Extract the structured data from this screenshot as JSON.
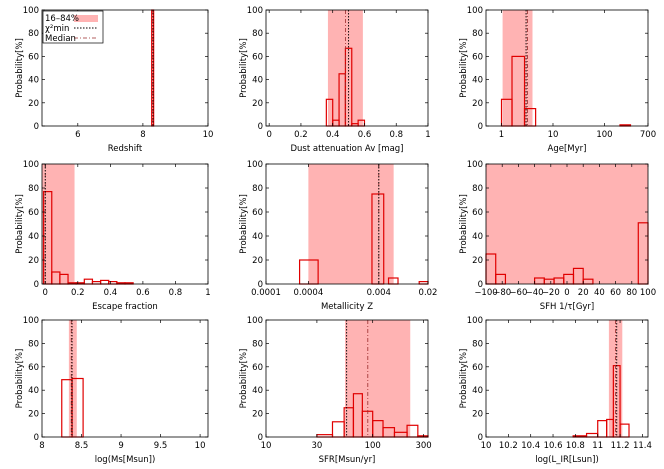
{
  "colors": {
    "band": "#ffb3b3",
    "hist": "#e00000",
    "chi2": "#000000",
    "median": "#9a2b2b",
    "frame": "#000000"
  },
  "legend": {
    "band_label": "16–84%",
    "chi2_label": "χ²min",
    "median_label": "Median"
  },
  "chart_data": [
    {
      "type": "bar",
      "xlabel": "Redshift",
      "ylabel": "Probability[%]",
      "xscale": "linear",
      "xlim": [
        4.9,
        10
      ],
      "ylim": [
        0,
        100
      ],
      "xticks": [
        6,
        8,
        10
      ],
      "xticklabels": [
        "6",
        "8",
        "10"
      ],
      "yticks": [
        0,
        20,
        40,
        60,
        80,
        100
      ],
      "yticklabels": [
        "0",
        "20",
        "40",
        "60",
        "80",
        "100"
      ],
      "band": [
        8.28,
        8.34
      ],
      "chi2": 8.31,
      "median": 8.31,
      "bins": [
        [
          8.27,
          8.33,
          100
        ]
      ],
      "legend": true
    },
    {
      "type": "bar",
      "xlabel": "Dust attenuation Av [mag]",
      "ylabel": "Probability[%]",
      "xscale": "linear",
      "xlim": [
        -0.02,
        1
      ],
      "ylim": [
        0,
        100
      ],
      "xticks": [
        0,
        0.2,
        0.4,
        0.6,
        0.8,
        1
      ],
      "xticklabels": [
        "0",
        "0.2",
        "0.4",
        "0.6",
        "0.8",
        "1"
      ],
      "yticks": [
        0,
        20,
        40,
        60,
        80,
        100
      ],
      "yticklabels": [
        "0",
        "20",
        "40",
        "60",
        "80",
        "100"
      ],
      "band": [
        0.37,
        0.59
      ],
      "chi2": 0.5,
      "median": 0.48,
      "bins": [
        [
          0.36,
          0.4,
          23
        ],
        [
          0.4,
          0.44,
          5
        ],
        [
          0.44,
          0.48,
          45
        ],
        [
          0.48,
          0.52,
          67
        ],
        [
          0.52,
          0.56,
          2
        ],
        [
          0.56,
          0.6,
          5
        ]
      ]
    },
    {
      "type": "bar",
      "xlabel": "Age[Myr]",
      "ylabel": "Probability[%]",
      "xscale": "log",
      "xlim": [
        0.5,
        700
      ],
      "ylim": [
        0,
        100
      ],
      "xticks": [
        1,
        10,
        100,
        700
      ],
      "xticklabels": [
        "1",
        "10",
        "100",
        "700"
      ],
      "yticks": [
        0,
        20,
        40,
        60,
        80,
        100
      ],
      "yticklabels": [
        "0",
        "20",
        "40",
        "60",
        "80",
        "100"
      ],
      "band": [
        1.05,
        4.0
      ],
      "chi2": 3.0,
      "median": 3.2,
      "bins": [
        [
          1.0,
          1.6,
          23
        ],
        [
          1.6,
          2.8,
          60
        ],
        [
          2.8,
          4.6,
          15
        ],
        [
          200,
          320,
          1
        ]
      ]
    },
    {
      "type": "bar",
      "xlabel": "Escape fraction",
      "ylabel": "Probability[%]",
      "xscale": "linear",
      "xlim": [
        -0.02,
        1
      ],
      "ylim": [
        0,
        100
      ],
      "xticks": [
        0,
        0.2,
        0.4,
        0.6,
        0.8,
        1
      ],
      "xticklabels": [
        "0",
        "0.2",
        "0.4",
        "0.6",
        "0.8",
        "1"
      ],
      "yticks": [
        0,
        20,
        40,
        60,
        80,
        100
      ],
      "yticklabels": [
        "0",
        "20",
        "40",
        "60",
        "80",
        "100"
      ],
      "band": [
        -0.02,
        0.18
      ],
      "chi2": 0.0,
      "median": 0.0,
      "bins": [
        [
          -0.01,
          0.04,
          77
        ],
        [
          0.04,
          0.09,
          10
        ],
        [
          0.09,
          0.14,
          8
        ],
        [
          0.14,
          0.19,
          1
        ],
        [
          0.19,
          0.24,
          1
        ],
        [
          0.24,
          0.29,
          4
        ],
        [
          0.29,
          0.34,
          2
        ],
        [
          0.34,
          0.39,
          3
        ],
        [
          0.39,
          0.44,
          2
        ],
        [
          0.44,
          0.49,
          1
        ],
        [
          0.49,
          0.54,
          1
        ]
      ]
    },
    {
      "type": "bar",
      "xlabel": "Metallicity Z",
      "ylabel": "Probability[%]",
      "xscale": "log",
      "xlim": [
        0.0001,
        0.02
      ],
      "ylim": [
        0,
        100
      ],
      "xticks": [
        0.0001,
        0.0004,
        0.004,
        0.02
      ],
      "xticklabels": [
        "0.0001",
        "0.0004",
        "0.004",
        "0.02"
      ],
      "yticks": [
        0,
        20,
        40,
        60,
        80,
        100
      ],
      "yticklabels": [
        "0",
        "20",
        "40",
        "60",
        "80",
        "100"
      ],
      "band": [
        0.0004,
        0.0065
      ],
      "chi2": 0.004,
      "median": 0.004,
      "bins": [
        [
          0.0003,
          0.00055,
          20
        ],
        [
          0.0032,
          0.0047,
          75
        ],
        [
          0.0055,
          0.0075,
          5
        ],
        [
          0.015,
          0.02,
          2
        ]
      ]
    },
    {
      "type": "bar",
      "xlabel": "SFH 1/τ[Gyr]",
      "ylabel": "Probability[%]",
      "xscale": "linear",
      "xlim": [
        -100,
        100
      ],
      "ylim": [
        0,
        100
      ],
      "xticks": [
        -100,
        -80,
        -60,
        -40,
        -20,
        0,
        20,
        40,
        60,
        80,
        100
      ],
      "xticklabels": [
        "−100",
        "−80",
        "−60",
        "−40",
        "−20",
        "0",
        "20",
        "40",
        "60",
        "80",
        "100"
      ],
      "yticks": [
        0,
        20,
        40,
        60,
        80,
        100
      ],
      "yticklabels": [
        "0",
        "20",
        "40",
        "60",
        "80",
        "100"
      ],
      "band": [
        -100,
        100
      ],
      "chi2": null,
      "median": null,
      "bins": [
        [
          -100,
          -88,
          25
        ],
        [
          -88,
          -76,
          8
        ],
        [
          -40,
          -28,
          5
        ],
        [
          -28,
          -16,
          4
        ],
        [
          -16,
          -4,
          5
        ],
        [
          -4,
          8,
          8
        ],
        [
          8,
          20,
          13
        ],
        [
          20,
          32,
          4
        ],
        [
          88,
          100,
          51
        ]
      ]
    },
    {
      "type": "bar",
      "xlabel": "log(Ms[Msun])",
      "ylabel": "Probability[%]",
      "xscale": "linear",
      "xlim": [
        8,
        10.1
      ],
      "ylim": [
        0,
        100
      ],
      "xticks": [
        8,
        8.5,
        9,
        9.5,
        10
      ],
      "xticklabels": [
        "8",
        "8.5",
        "9",
        "9.5",
        "10"
      ],
      "yticks": [
        0,
        20,
        40,
        60,
        80,
        100
      ],
      "yticklabels": [
        "0",
        "20",
        "40",
        "60",
        "80",
        "100"
      ],
      "band": [
        8.34,
        8.44
      ],
      "chi2": 8.38,
      "median": 8.37,
      "bins": [
        [
          8.25,
          8.38,
          49
        ],
        [
          8.38,
          8.52,
          50
        ]
      ]
    },
    {
      "type": "bar",
      "xlabel": "SFR[Msun/yr]",
      "ylabel": "Probability[%]",
      "xscale": "log",
      "xlim": [
        10,
        330
      ],
      "ylim": [
        0,
        100
      ],
      "xticks": [
        10,
        30,
        100,
        300
      ],
      "xticklabels": [
        "10",
        "30",
        "100",
        "300"
      ],
      "yticks": [
        0,
        20,
        40,
        60,
        80,
        100
      ],
      "yticklabels": [
        "0",
        "20",
        "40",
        "60",
        "80",
        "100"
      ],
      "band": [
        55,
        225
      ],
      "chi2": 57,
      "median": 90,
      "bins": [
        [
          30,
          42,
          2
        ],
        [
          42,
          54,
          13
        ],
        [
          54,
          66,
          25
        ],
        [
          66,
          80,
          37
        ],
        [
          80,
          100,
          22
        ],
        [
          100,
          125,
          14
        ],
        [
          125,
          160,
          8
        ],
        [
          160,
          210,
          4
        ],
        [
          210,
          265,
          10
        ],
        [
          265,
          330,
          1
        ]
      ]
    },
    {
      "type": "bar",
      "xlabel": "log(L_IR[Lsun])",
      "ylabel": "Probability[%]",
      "xscale": "linear",
      "xlim": [
        10,
        11.45
      ],
      "ylim": [
        0,
        100
      ],
      "xticks": [
        10,
        10.2,
        10.4,
        10.6,
        10.8,
        11,
        11.2,
        11.4
      ],
      "xticklabels": [
        "10",
        "10.2",
        "10.4",
        "10.6",
        "10.8",
        "11",
        "11.2",
        "11.4"
      ],
      "yticks": [
        0,
        20,
        40,
        60,
        80,
        100
      ],
      "yticklabels": [
        "0",
        "20",
        "40",
        "60",
        "80",
        "100"
      ],
      "band": [
        11.1,
        11.22
      ],
      "chi2": 11.17,
      "median": 11.16,
      "bins": [
        [
          10.78,
          10.9,
          1
        ],
        [
          10.9,
          11.0,
          3
        ],
        [
          11.0,
          11.08,
          14
        ],
        [
          11.08,
          11.14,
          15
        ],
        [
          11.14,
          11.2,
          61
        ],
        [
          11.2,
          11.28,
          11
        ]
      ]
    }
  ]
}
